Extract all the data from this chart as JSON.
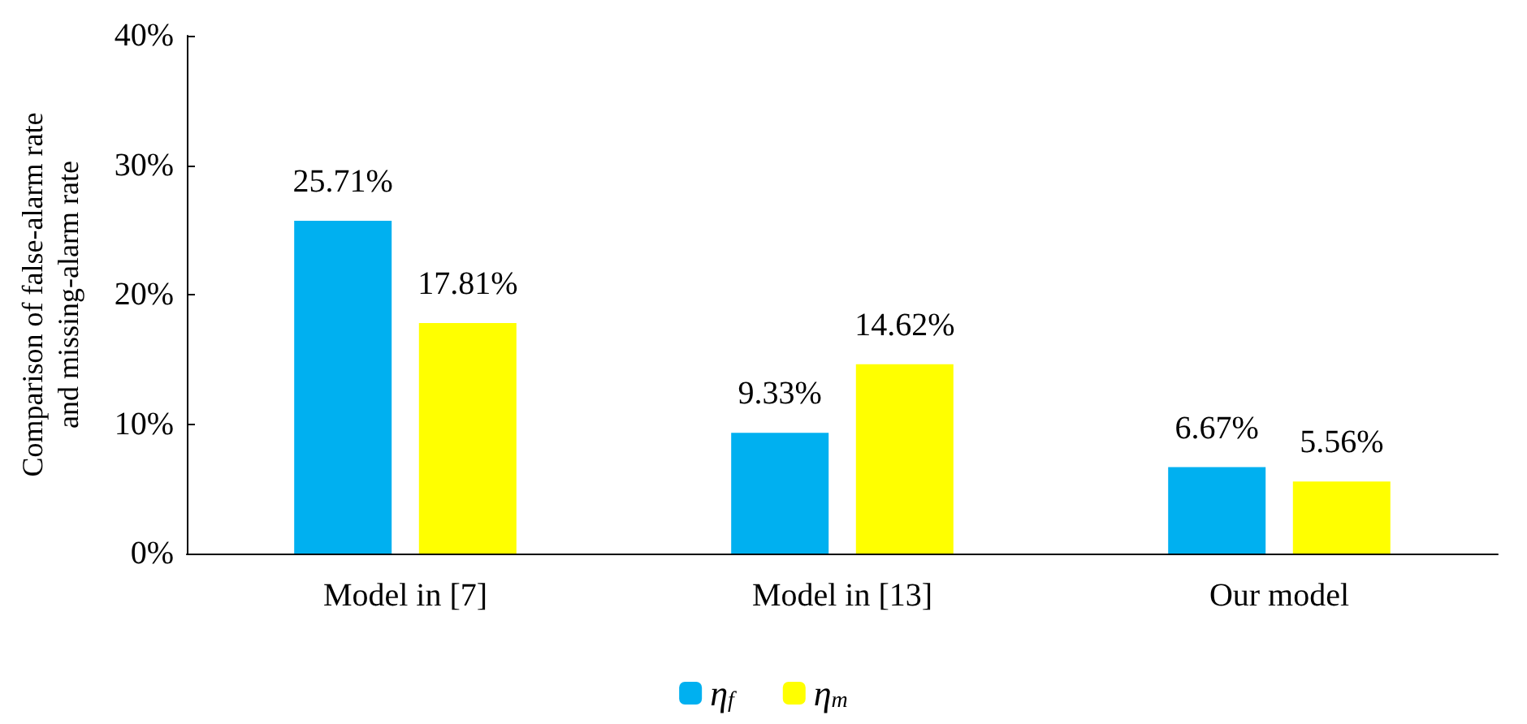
{
  "chart_data": {
    "type": "bar",
    "ylabel": "Comparison of false-alarm rate\nand missing-alarm rate",
    "categories": [
      "Model in [7]",
      "Model in [13]",
      "Our model"
    ],
    "series": [
      {
        "name": "η$_{f}$",
        "color": "#00b0f0",
        "values": [
          25.71,
          9.33,
          6.67
        ],
        "value_labels": [
          "25.71%",
          "9.33%",
          "6.67%"
        ]
      },
      {
        "name": "η$_{m}$",
        "color": "#ffff00",
        "values": [
          17.81,
          14.62,
          5.56
        ],
        "value_labels": [
          "17.81%",
          "14.62%",
          "5.56%"
        ]
      }
    ],
    "ylim": [
      0,
      40
    ],
    "yticks": [
      {
        "value": 0,
        "label": "0%"
      },
      {
        "value": 10,
        "label": "10%"
      },
      {
        "value": 20,
        "label": "20%"
      },
      {
        "value": 30,
        "label": "30%"
      },
      {
        "value": 40,
        "label": "40%"
      }
    ],
    "grid": false,
    "legend": "bottom"
  }
}
